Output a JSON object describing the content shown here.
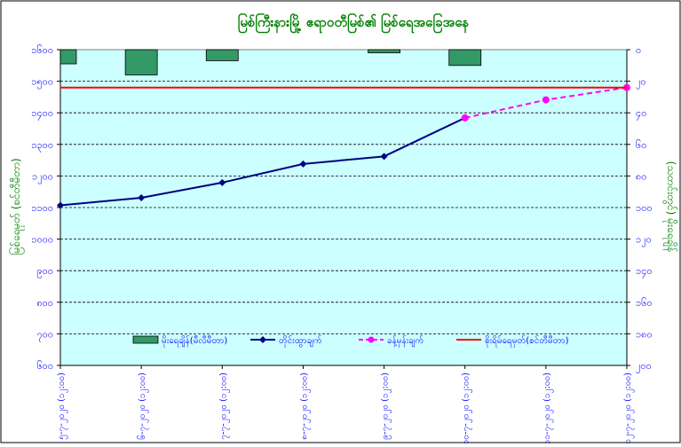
{
  "chart_data": {
    "type": "line",
    "title": "မြစ်ကြီးနားမြို့ ဧရာဝတီမြစ်၏ မြစ်ရေအခြေအနေ",
    "ylabel": "မြစ်ရေမှတ် (စင်တီမီတာ)",
    "y2label": "(သတင်းတွင်) မိုးရေချိန်",
    "categories": [
      "၅-၇-၂၀၂၀ (၁၂:၀၀)",
      "၆-၇-၂၀၂၀ (၁၂:၀၀)",
      "၇-၇-၂၀၂၀ (၁၂:၀၀)",
      "၈-၇-၂၀၂၀ (၁၂:၀၀)",
      "၉-၇-၂၀၂၀ (၁၂:၀၀)",
      "၁၀-၇-၂၀၂၀ (၁၂:၀၀)",
      "၁၁-၇-၂၀၂၀ (၁၂:၀၀)",
      "၁၂-၇-၂၀၂၀ (၁၂:၀၀)"
    ],
    "ylim": [
      600,
      1600
    ],
    "yticks": [
      600,
      700,
      800,
      900,
      1000,
      1100,
      1200,
      1300,
      1400,
      1500,
      1600
    ],
    "yticklabels": [
      "၆၀၀",
      "၇၀၀",
      "၈၀၀",
      "၉၀၀",
      "၁၀၀၀",
      "၁၁၀၀",
      "၁၂၀၀",
      "၁၃၀၀",
      "၁၄၀၀",
      "၁၅၀၀",
      "၁၆၀၀"
    ],
    "y2lim": [
      0,
      200
    ],
    "y2ticks": [
      0,
      20,
      40,
      60,
      80,
      100,
      120,
      140,
      160,
      180,
      200
    ],
    "y2ticklabels": [
      "၀",
      "၂၀",
      "၄၀",
      "၆၀",
      "၈၀",
      "၁၀၀",
      "၁၂၀",
      "၁၄၀",
      "၁၆၀",
      "၁၈၀",
      "၂၀၀"
    ],
    "grid": true,
    "legend_position": "bottom-center",
    "series": [
      {
        "name": "မိုးရေချိန်(မီလီမီတာ)",
        "kind": "bar",
        "axis": "right",
        "color": "#339966",
        "values": [
          9,
          16,
          7,
          null,
          2,
          10,
          null,
          null
        ]
      },
      {
        "name": "တိုင်းထွာချက်",
        "kind": "line",
        "axis": "left",
        "color": "#000080",
        "values": [
          1107,
          1131,
          1179,
          1238,
          1262,
          null,
          null,
          null
        ]
      },
      {
        "name": "ခန့်မှန်းချက်",
        "kind": "dashed-line",
        "axis": "left",
        "color": "#ff00ff",
        "x_start": 5,
        "values": [
          null,
          null,
          null,
          null,
          null,
          1384,
          1441,
          1480
        ]
      },
      {
        "name": "စိုးရိမ်ရေမှတ်(စင်တီမီတာ)",
        "kind": "hline",
        "axis": "left",
        "color": "#ff0000",
        "value": 1480
      }
    ]
  },
  "colors": {
    "plot_bg": "#ccffff",
    "title": "#008000",
    "axis_label": "#008000",
    "tick_label": "#0000ff",
    "legend_text": "#0000ff"
  }
}
